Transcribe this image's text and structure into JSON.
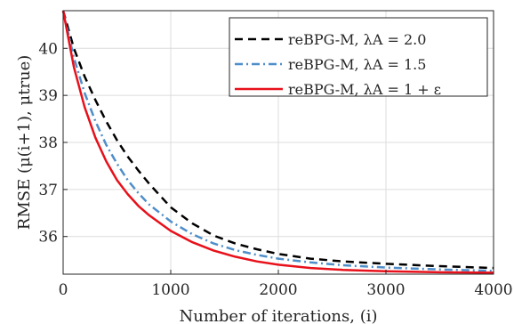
{
  "chart_data": {
    "type": "line",
    "xlabel": "Number of iterations, (i)",
    "ylabel": "RMSE (μ(i+1), μtrue)",
    "xlim": [
      0,
      4000
    ],
    "ylim": [
      35.2,
      40.8
    ],
    "xticks": [
      "0",
      "1000",
      "2000",
      "3000",
      "4000"
    ],
    "yticks": [
      "36",
      "37",
      "38",
      "39",
      "40"
    ],
    "grid": true,
    "legend_position": "top-right",
    "series": [
      {
        "name": "reBPG-M, λA = 2.0",
        "color": "#000000",
        "dash": "dashed",
        "x": [
          0,
          100,
          200,
          300,
          400,
          500,
          600,
          700,
          800,
          1000,
          1200,
          1400,
          1600,
          1800,
          2000,
          2300,
          2600,
          3000,
          3500,
          4000
        ],
        "y": [
          40.8,
          40.0,
          39.4,
          38.9,
          38.45,
          38.05,
          37.7,
          37.4,
          37.12,
          36.62,
          36.28,
          36.02,
          35.85,
          35.73,
          35.63,
          35.53,
          35.47,
          35.42,
          35.37,
          35.33
        ]
      },
      {
        "name": "reBPG-M, λA = 1.5",
        "color": "#4f8ec9",
        "dash": "dashdot",
        "x": [
          0,
          100,
          200,
          300,
          400,
          500,
          600,
          700,
          800,
          1000,
          1200,
          1400,
          1600,
          1800,
          2000,
          2300,
          2600,
          3000,
          3500,
          4000
        ],
        "y": [
          40.8,
          39.8,
          39.05,
          38.45,
          37.95,
          37.55,
          37.2,
          36.92,
          36.68,
          36.32,
          36.05,
          35.85,
          35.71,
          35.61,
          35.53,
          35.45,
          35.39,
          35.34,
          35.3,
          35.27
        ]
      },
      {
        "name": "reBPG-M, λA = 1 + ε",
        "color": "#e8101a",
        "dash": "solid",
        "x": [
          0,
          100,
          200,
          300,
          400,
          500,
          600,
          700,
          800,
          1000,
          1200,
          1400,
          1600,
          1800,
          2000,
          2300,
          2600,
          3000,
          3500,
          4000
        ],
        "y": [
          40.8,
          39.6,
          38.75,
          38.1,
          37.6,
          37.2,
          36.9,
          36.65,
          36.45,
          36.12,
          35.88,
          35.7,
          35.57,
          35.47,
          35.4,
          35.33,
          35.29,
          35.26,
          35.24,
          35.23
        ]
      }
    ]
  }
}
